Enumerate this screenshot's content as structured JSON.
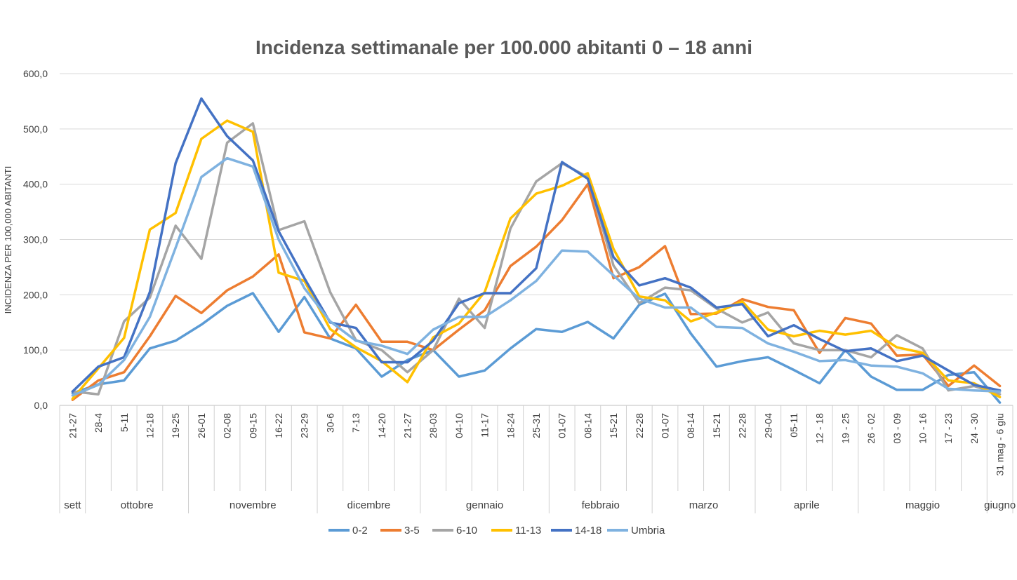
{
  "chart_data": {
    "type": "line",
    "title": "Incidenza settimanale per 100.000 abitanti 0 – 18 anni",
    "ylabel": "INCIDENZA PER 100,000 ABITANTI",
    "xlabel": "",
    "ylim": [
      0,
      600
    ],
    "yticks": [
      "0,0",
      "100,0",
      "200,0",
      "300,0",
      "400,0",
      "500,0",
      "600,0"
    ],
    "grid": true,
    "legend_position": "bottom",
    "categories": [
      "21-27",
      "28-4",
      "5-11",
      "12-18",
      "19-25",
      "26-01",
      "02-08",
      "09-15",
      "16-22",
      "23-29",
      "30-6",
      "7-13",
      "14-20",
      "21-27",
      "28-03",
      "04-10",
      "11-17",
      "18-24",
      "25-31",
      "01-07",
      "08-14",
      "15-21",
      "22-28",
      "01-07",
      "08-14",
      "15-21",
      "22-28",
      "29-04",
      "05-11",
      "12 - 18",
      "19 - 25",
      "26 - 02",
      "03 - 09",
      "10 - 16",
      "17 - 23",
      "24 - 30",
      "31 mag - 6 giu"
    ],
    "months": [
      {
        "label": "sett",
        "start": 0,
        "end": 0
      },
      {
        "label": "ottobre",
        "start": 1,
        "end": 4
      },
      {
        "label": "novembre",
        "start": 5,
        "end": 9
      },
      {
        "label": "dicembre",
        "start": 10,
        "end": 13
      },
      {
        "label": "gennaio",
        "start": 14,
        "end": 18
      },
      {
        "label": "febbraio",
        "start": 19,
        "end": 22
      },
      {
        "label": "marzo",
        "start": 23,
        "end": 26
      },
      {
        "label": "aprile",
        "start": 27,
        "end": 30
      },
      {
        "label": "maggio",
        "start": 31,
        "end": 35
      },
      {
        "label": "giugno",
        "start": 36,
        "end": 36
      }
    ],
    "series": [
      {
        "name": "0-2",
        "color": "#5B9BD5",
        "values": [
          22,
          38,
          45,
          103,
          117,
          146,
          180,
          203,
          133,
          196,
          121,
          103,
          52,
          82,
          100,
          52,
          63,
          103,
          138,
          133,
          151,
          121,
          182,
          202,
          130,
          70,
          80,
          87,
          64,
          40,
          100,
          52,
          28,
          28,
          55,
          60,
          5
        ]
      },
      {
        "name": "3-5",
        "color": "#ED7D31",
        "values": [
          10,
          45,
          60,
          125,
          198,
          167,
          208,
          233,
          273,
          132,
          121,
          182,
          115,
          115,
          100,
          137,
          172,
          252,
          287,
          335,
          400,
          230,
          250,
          288,
          165,
          166,
          192,
          178,
          172,
          95,
          158,
          148,
          90,
          92,
          35,
          72,
          35
        ]
      },
      {
        "name": "6-10",
        "color": "#A5A5A5",
        "values": [
          25,
          20,
          152,
          195,
          325,
          265,
          475,
          510,
          317,
          333,
          205,
          118,
          100,
          60,
          100,
          193,
          140,
          320,
          405,
          438,
          413,
          253,
          185,
          213,
          208,
          175,
          150,
          168,
          112,
          100,
          100,
          87,
          127,
          103,
          27,
          35,
          20
        ]
      },
      {
        "name": "11-13",
        "color": "#FFC000",
        "values": [
          12,
          67,
          122,
          318,
          348,
          482,
          515,
          495,
          240,
          225,
          138,
          105,
          80,
          42,
          123,
          148,
          205,
          338,
          383,
          397,
          420,
          283,
          197,
          190,
          152,
          168,
          188,
          137,
          125,
          135,
          128,
          135,
          105,
          95,
          45,
          40,
          15
        ]
      },
      {
        "name": "14-18",
        "color": "#4472C4",
        "values": [
          25,
          70,
          87,
          205,
          438,
          555,
          487,
          443,
          315,
          230,
          150,
          140,
          78,
          78,
          117,
          185,
          203,
          203,
          248,
          440,
          410,
          268,
          217,
          230,
          213,
          177,
          183,
          125,
          145,
          120,
          98,
          103,
          80,
          90,
          63,
          37,
          27
        ]
      },
      {
        "name": "Umbria",
        "color": "#7FB2E0",
        "values": [
          18,
          37,
          82,
          160,
          285,
          413,
          447,
          432,
          300,
          212,
          152,
          117,
          108,
          93,
          137,
          160,
          160,
          190,
          225,
          280,
          278,
          235,
          193,
          177,
          177,
          142,
          140,
          112,
          97,
          80,
          82,
          72,
          70,
          58,
          30,
          27,
          25
        ]
      }
    ]
  }
}
